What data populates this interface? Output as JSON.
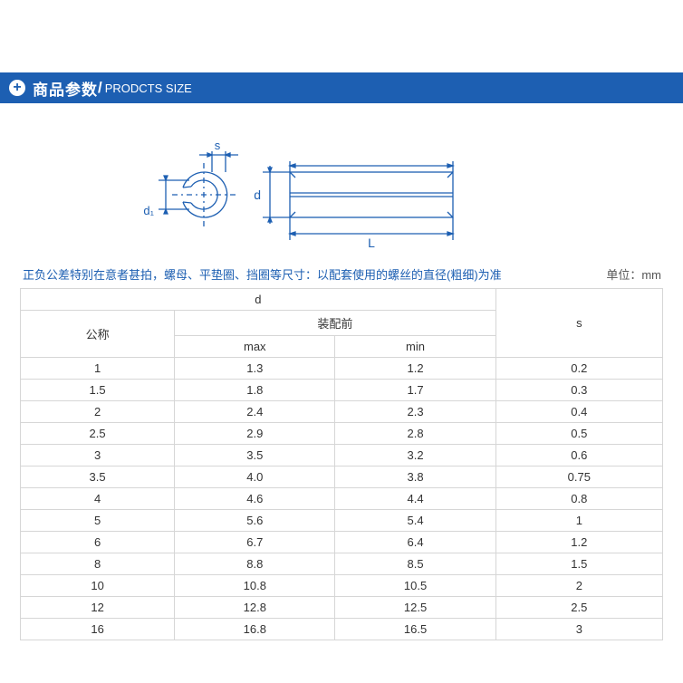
{
  "header": {
    "title_cn": "商品参数",
    "title_en": "PRODCTS SIZE"
  },
  "diagram": {
    "labels": {
      "s": "s",
      "d1": "d₁",
      "d": "d",
      "L": "L"
    },
    "stroke_color": "#1d5fb2"
  },
  "note": "正负公差特别在意者甚拍，螺母、平垫圈、挡圈等尺寸：以配套使用的螺丝的直径(粗细)为准",
  "unit": "单位：mm",
  "table": {
    "headers": {
      "d_group": "d",
      "nominal": "公称",
      "assemble_before": "装配前",
      "max": "max",
      "min": "min",
      "s": "s"
    },
    "rows": [
      {
        "nominal": "1",
        "max": "1.3",
        "min": "1.2",
        "s": "0.2"
      },
      {
        "nominal": "1.5",
        "max": "1.8",
        "min": "1.7",
        "s": "0.3"
      },
      {
        "nominal": "2",
        "max": "2.4",
        "min": "2.3",
        "s": "0.4"
      },
      {
        "nominal": "2.5",
        "max": "2.9",
        "min": "2.8",
        "s": "0.5"
      },
      {
        "nominal": "3",
        "max": "3.5",
        "min": "3.2",
        "s": "0.6"
      },
      {
        "nominal": "3.5",
        "max": "4.0",
        "min": "3.8",
        "s": "0.75"
      },
      {
        "nominal": "4",
        "max": "4.6",
        "min": "4.4",
        "s": "0.8"
      },
      {
        "nominal": "5",
        "max": "5.6",
        "min": "5.4",
        "s": "1"
      },
      {
        "nominal": "6",
        "max": "6.7",
        "min": "6.4",
        "s": "1.2"
      },
      {
        "nominal": "8",
        "max": "8.8",
        "min": "8.5",
        "s": "1.5"
      },
      {
        "nominal": "10",
        "max": "10.8",
        "min": "10.5",
        "s": "2"
      },
      {
        "nominal": "12",
        "max": "12.8",
        "min": "12.5",
        "s": "2.5"
      },
      {
        "nominal": "16",
        "max": "16.8",
        "min": "16.5",
        "s": "3"
      }
    ]
  }
}
